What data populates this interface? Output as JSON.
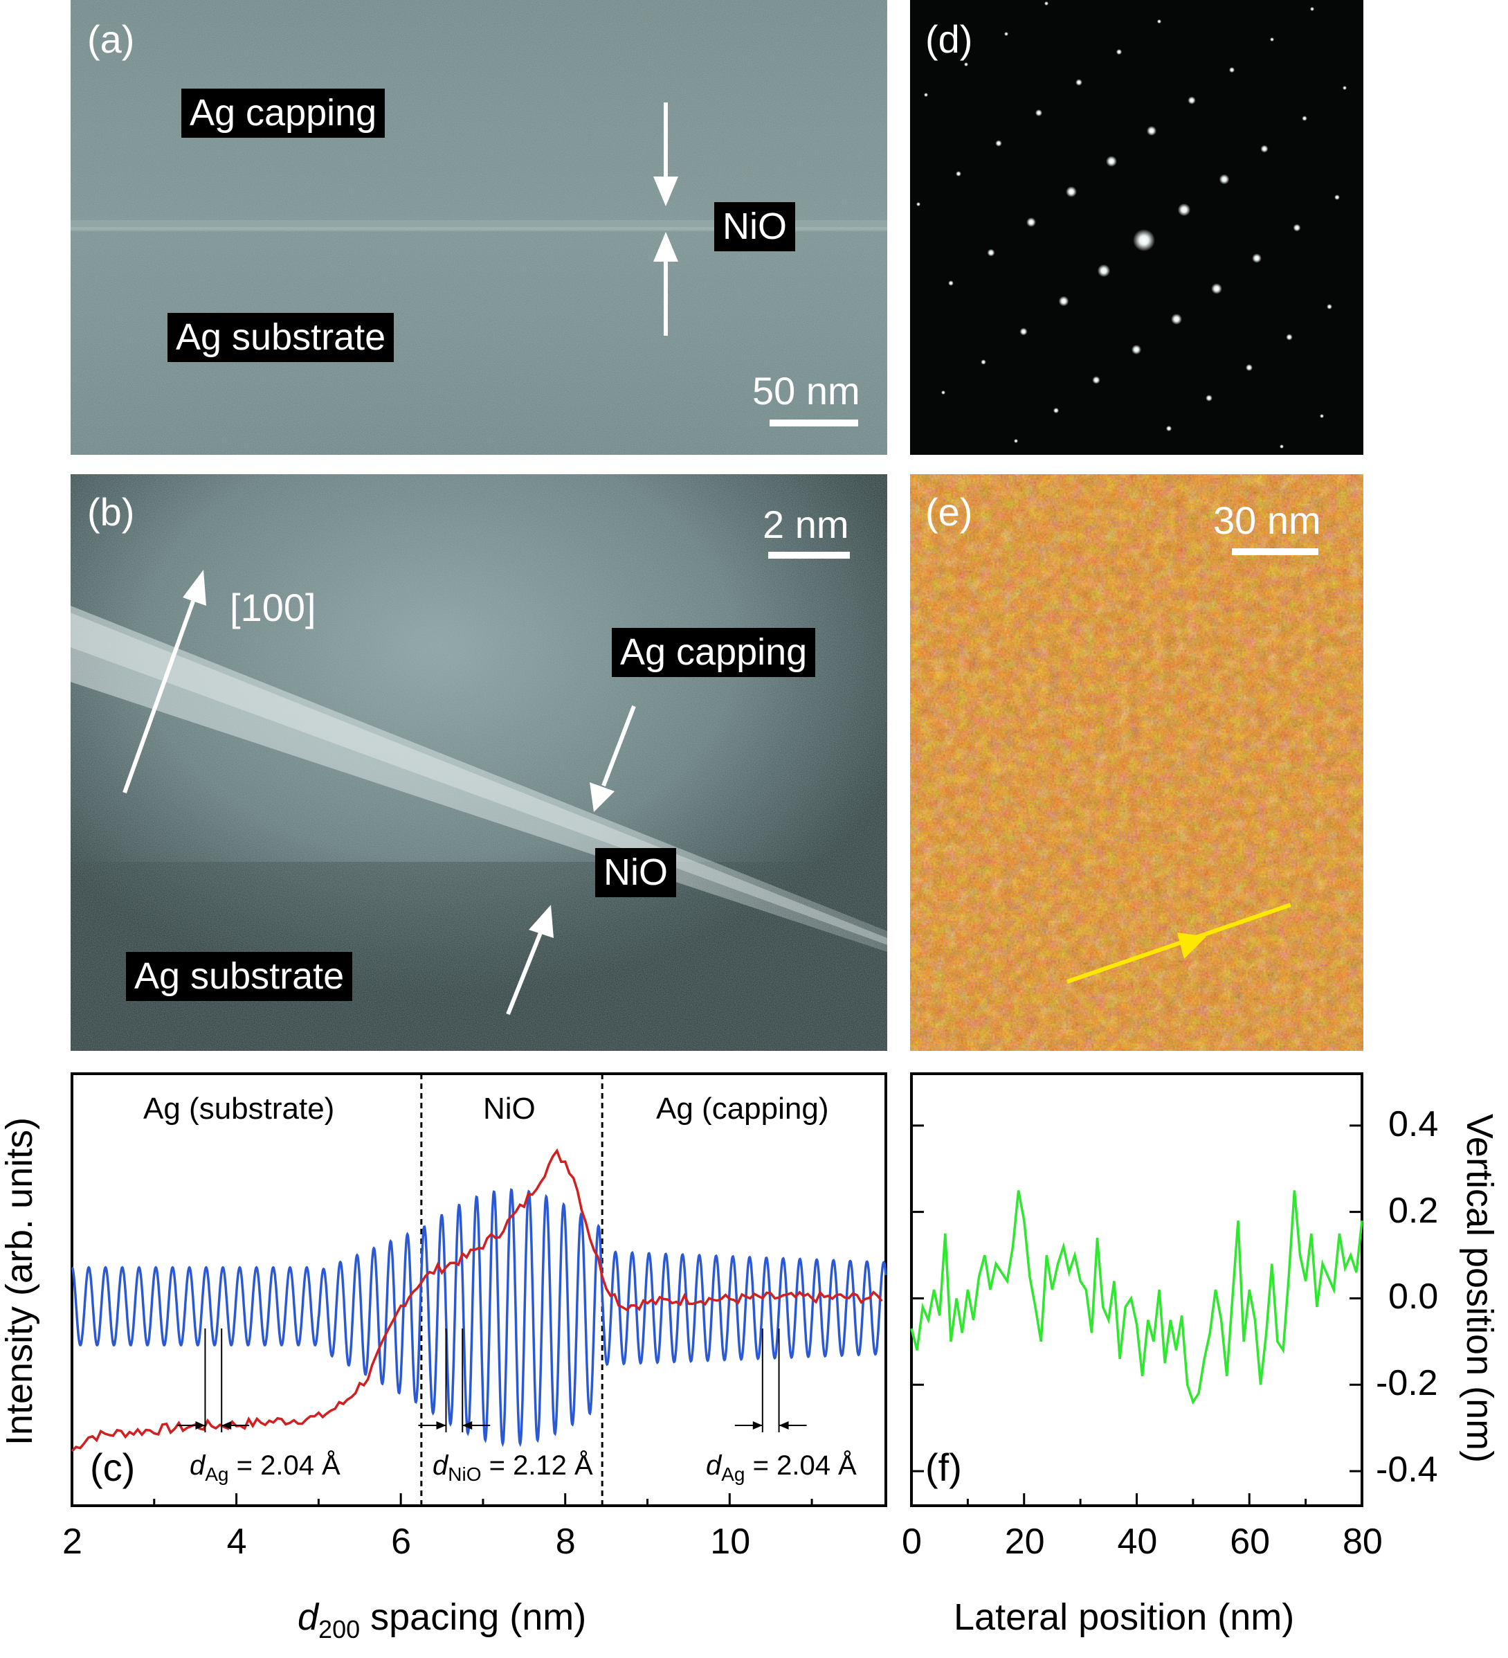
{
  "panels": {
    "a": {
      "label": "(a)",
      "tags": [
        "Ag capping",
        "NiO",
        "Ag substrate"
      ],
      "scale": "50 nm"
    },
    "b": {
      "label": "(b)",
      "tags": [
        "Ag capping",
        "NiO",
        "Ag substrate"
      ],
      "direction": "[100]",
      "scale": "2 nm"
    },
    "d": {
      "label": "(d)"
    },
    "e": {
      "label": "(e)",
      "scale": "30 nm"
    },
    "c": {
      "label": "(c)",
      "regions": [
        "Ag (substrate)",
        "NiO",
        "Ag (capping)"
      ],
      "spacings": [
        {
          "sym": "d",
          "sub": "Ag",
          "rest": " = 2.04 Å"
        },
        {
          "sym": "d",
          "sub": "NiO",
          "rest": " = 2.12 Å"
        },
        {
          "sym": "d",
          "sub": "Ag",
          "rest": " = 2.04 Å"
        }
      ]
    },
    "f": {
      "label": "(f)"
    }
  },
  "chart_data": [
    {
      "type": "line",
      "panel": "c",
      "xlabel_sym": "d",
      "xlabel_sub": "200",
      "xlabel_rest": " spacing (nm)",
      "ylabel": "Intensity (arb. units)",
      "xlim": [
        2.0,
        11.9
      ],
      "x_ticks": [
        "2",
        "4",
        "6",
        "8",
        "10"
      ],
      "boundaries": [
        6.25,
        8.45
      ],
      "series": [
        {
          "color": "#2b59d6",
          "desc_period_ag": 0.204,
          "desc_period_nio": 0.212
        },
        {
          "color": "#d21f1f",
          "x": [
            2.0,
            2.2,
            2.5,
            3.0,
            3.5,
            4.0,
            4.5,
            5.0,
            5.3,
            5.6,
            5.8,
            6.0,
            6.2,
            6.4,
            6.8,
            7.2,
            7.5,
            7.8,
            7.9,
            8.0,
            8.1,
            8.3,
            8.5,
            8.7,
            9.0,
            9.5,
            10.0,
            10.5,
            11.0,
            11.5,
            11.9
          ],
          "y": [
            -0.82,
            -0.74,
            -0.72,
            -0.7,
            -0.68,
            -0.67,
            -0.65,
            -0.63,
            -0.55,
            -0.4,
            -0.2,
            0.0,
            0.12,
            0.2,
            0.28,
            0.42,
            0.58,
            0.8,
            0.86,
            0.82,
            0.74,
            0.4,
            0.12,
            0.0,
            0.02,
            0.04,
            0.04,
            0.05,
            0.05,
            0.05,
            0.05
          ]
        }
      ]
    },
    {
      "type": "line",
      "panel": "f",
      "xlabel": "Lateral position (nm)",
      "ylabel": "Vertical position (nm)",
      "xlim": [
        0,
        80
      ],
      "ylim": [
        -0.48,
        0.52
      ],
      "x_ticks": [
        "0",
        "20",
        "40",
        "60",
        "80"
      ],
      "y_ticks": [
        "0.4",
        "0.2",
        "0.0",
        "-0.2",
        "-0.4"
      ],
      "series": [
        {
          "color": "#2ee82e",
          "x": [
            0,
            1,
            2,
            3,
            4,
            5,
            6,
            7,
            8,
            9,
            10,
            11,
            12,
            13,
            14,
            15,
            16,
            17,
            18,
            19,
            20,
            21,
            22,
            23,
            24,
            25,
            26,
            27,
            28,
            29,
            30,
            31,
            32,
            33,
            34,
            35,
            36,
            37,
            38,
            39,
            40,
            41,
            42,
            43,
            44,
            45,
            46,
            47,
            48,
            49,
            50,
            51,
            52,
            53,
            54,
            55,
            56,
            57,
            58,
            59,
            60,
            61,
            62,
            63,
            64,
            65,
            66,
            67,
            68,
            69,
            70,
            71,
            72,
            73,
            74,
            75,
            76,
            77,
            78,
            79,
            80
          ],
          "y": [
            -0.07,
            -0.12,
            -0.02,
            -0.05,
            0.02,
            -0.04,
            0.15,
            -0.1,
            0.0,
            -0.08,
            0.02,
            -0.05,
            0.05,
            0.1,
            0.02,
            0.08,
            0.06,
            0.04,
            0.12,
            0.25,
            0.18,
            0.05,
            -0.02,
            -0.1,
            0.1,
            0.02,
            0.08,
            0.12,
            0.06,
            0.1,
            0.04,
            0.02,
            -0.08,
            0.14,
            -0.02,
            -0.05,
            0.04,
            -0.14,
            -0.02,
            0.0,
            -0.06,
            -0.18,
            -0.05,
            -0.1,
            0.02,
            -0.15,
            -0.05,
            -0.12,
            -0.04,
            -0.2,
            -0.24,
            -0.22,
            -0.14,
            -0.08,
            0.02,
            -0.05,
            -0.18,
            0.0,
            0.18,
            -0.1,
            0.02,
            -0.05,
            -0.2,
            -0.08,
            0.08,
            -0.1,
            -0.12,
            0.05,
            0.25,
            0.1,
            0.04,
            0.15,
            -0.02,
            0.08,
            0.05,
            0.02,
            0.15,
            0.07,
            0.1,
            0.06,
            0.18
          ]
        }
      ]
    }
  ]
}
